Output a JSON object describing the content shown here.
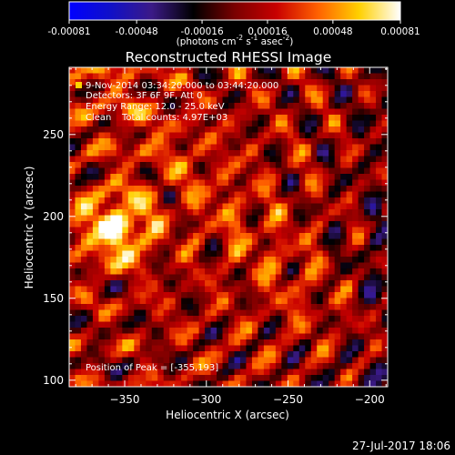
{
  "colorbar": {
    "min": -0.00081,
    "max": 0.00081,
    "tick_labels": [
      "-0.00081",
      "-0.00048",
      "-0.00016",
      "0.00016",
      "0.00048",
      "0.00081"
    ],
    "unit_label": "(photons cm",
    "unit_exp1": "-2",
    "unit_mid": " s",
    "unit_exp2": "-1",
    "unit_mid2": " asec",
    "unit_exp3": "-2",
    "unit_end": ")",
    "colors": [
      "#0000ff",
      "#1010c8",
      "#3b1a86",
      "#000000",
      "#7a0000",
      "#c80000",
      "#ff6000",
      "#ffd000",
      "#ffffff"
    ]
  },
  "chart_data": {
    "type": "heatmap",
    "title": "Reconstructed RHESSI Image",
    "xlabel": "Heliocentric X (arcsec)",
    "ylabel": "Heliocentric Y (arcsec)",
    "xlim": [
      -384,
      -189
    ],
    "ylim": [
      96,
      291
    ],
    "xticks": [
      -350,
      -300,
      -250,
      -200
    ],
    "yticks": [
      100,
      150,
      200,
      250
    ],
    "xtick_labels": [
      "−350",
      "−300",
      "−250",
      "−200"
    ],
    "ytick_labels": [
      "100",
      "150",
      "200",
      "250"
    ],
    "peak": {
      "x": -355,
      "y": 193
    },
    "annotations": {
      "line1": "9-Nov-2014 03:34:20.000 to 03:44:20.000",
      "line2": "Detectors: 3F 6F 9F, Att 0",
      "line3": "Energy Range: 12.0 - 25.0 keV",
      "line4_a": "Clean",
      "line4_b": "Total counts: 4.97E+03",
      "peak_label": "Position of Peak = [-355,193]"
    }
  },
  "footer": {
    "timestamp": "27-Jul-2017 18:06"
  }
}
